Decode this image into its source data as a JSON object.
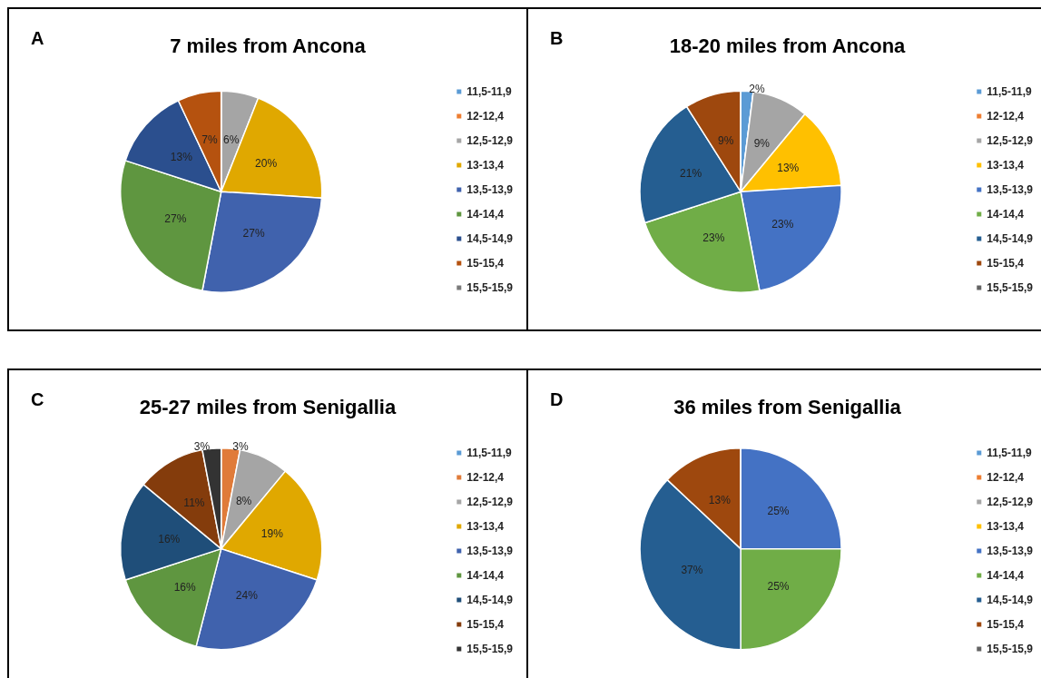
{
  "chart_data": [
    {
      "type": "pie",
      "title": "7 miles from Ancona",
      "annotations": [
        "A"
      ],
      "legend": "right",
      "categories": [
        "11,5-11,9",
        "12-12,4",
        "12,5-12,9",
        "13-13,4",
        "13,5-13,9",
        "14-14,4",
        "14,5-14,9",
        "15-15,4",
        "15,5-15,9"
      ],
      "values": [
        0,
        0,
        6,
        20,
        27,
        27,
        13,
        7,
        0
      ],
      "value_labels": [
        null,
        null,
        "6%",
        "20%",
        "27%",
        "27%",
        "13%",
        "7%",
        null
      ],
      "colors": [
        "#5b9bd5",
        "#ed7d31",
        "#a5a5a5",
        "#e0a800",
        "#4062ad",
        "#5f9640",
        "#2b4f8e",
        "#b5520f",
        "#7a7a7a"
      ]
    },
    {
      "type": "pie",
      "title": "18-20 miles from Ancona",
      "annotations": [
        "B"
      ],
      "legend": "right",
      "categories": [
        "11,5-11,9",
        "12-12,4",
        "12,5-12,9",
        "13-13,4",
        "13,5-13,9",
        "14-14,4",
        "14,5-14,9",
        "15-15,4",
        "15,5-15,9"
      ],
      "values": [
        2,
        0,
        9,
        13,
        23,
        23,
        21,
        9,
        0
      ],
      "value_labels": [
        "2%",
        null,
        "9%",
        "13%",
        "23%",
        "23%",
        "21%",
        "9%",
        null
      ],
      "colors": [
        "#5b9bd5",
        "#ed7d31",
        "#a5a5a5",
        "#ffc000",
        "#4472c4",
        "#70ad47",
        "#255e91",
        "#9e480e",
        "#636363"
      ]
    },
    {
      "type": "pie",
      "title": "25-27 miles from Senigallia",
      "annotations": [
        "C"
      ],
      "legend": "right",
      "categories": [
        "11,5-11,9",
        "12-12,4",
        "12,5-12,9",
        "13-13,4",
        "13,5-13,9",
        "14-14,4",
        "14,5-14,9",
        "15-15,4",
        "15,5-15,9"
      ],
      "values": [
        0,
        3,
        8,
        19,
        24,
        16,
        16,
        11,
        3
      ],
      "value_labels": [
        null,
        "3%",
        "8%",
        "19%",
        "24%",
        "16%",
        "16%",
        "11%",
        "3%"
      ],
      "colors": [
        "#5b9bd5",
        "#e07b39",
        "#a5a5a5",
        "#e0a800",
        "#4062ad",
        "#5f9640",
        "#1f4e79",
        "#843c0c",
        "#333333"
      ]
    },
    {
      "type": "pie",
      "title": "36 miles from Senigallia",
      "annotations": [
        "D"
      ],
      "legend": "right",
      "categories": [
        "11,5-11,9",
        "12-12,4",
        "12,5-12,9",
        "13-13,4",
        "13,5-13,9",
        "14-14,4",
        "14,5-14,9",
        "15-15,4",
        "15,5-15,9"
      ],
      "values": [
        0,
        0,
        0,
        0,
        25,
        25,
        37,
        13,
        0
      ],
      "value_labels": [
        null,
        null,
        null,
        null,
        "25%",
        "25%",
        "37%",
        "13%",
        null
      ],
      "colors": [
        "#5b9bd5",
        "#ed7d31",
        "#a5a5a5",
        "#ffc000",
        "#4472c4",
        "#70ad47",
        "#255e91",
        "#9e480e",
        "#636363"
      ]
    }
  ]
}
